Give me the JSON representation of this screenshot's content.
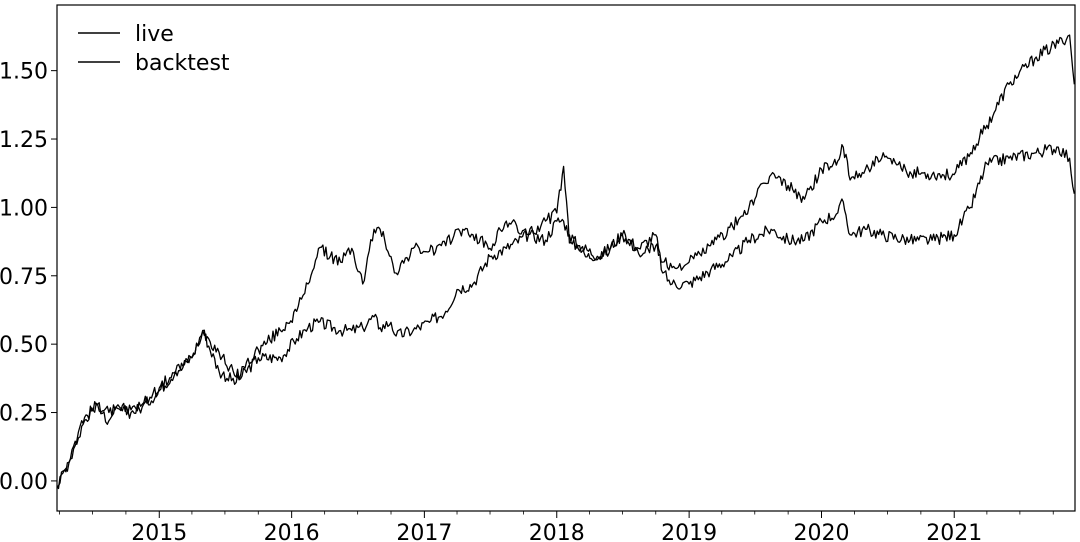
{
  "chart_data": {
    "type": "line",
    "title": "",
    "xlabel": "",
    "ylabel": "",
    "x_axis": "date",
    "xlim": [
      "2014-03-25",
      "2021-11-30"
    ],
    "ylim": [
      -0.11,
      1.74
    ],
    "grid": false,
    "legend": {
      "placement": "top-left",
      "entries": [
        "live",
        "backtest"
      ]
    },
    "x_ticks": [
      "2015",
      "2016",
      "2017",
      "2018",
      "2019",
      "2020",
      "2021"
    ],
    "y_ticks": [
      "0.00",
      "0.25",
      "0.50",
      "0.75",
      "1.00",
      "1.25",
      "1.50"
    ],
    "series": [
      {
        "name": "live",
        "color": "#000000",
        "x": [
          "2014-03-25",
          "2014-05-01",
          "2014-06-01",
          "2014-07-15",
          "2014-08-15",
          "2014-09-01",
          "2014-10-15",
          "2014-11-15",
          "2015-01-01",
          "2015-02-15",
          "2015-04-01",
          "2015-05-01",
          "2015-06-15",
          "2015-08-01",
          "2015-10-01",
          "2015-12-01",
          "2016-01-15",
          "2016-02-15",
          "2016-03-15",
          "2016-05-15",
          "2016-06-15",
          "2016-07-15",
          "2016-08-15",
          "2016-09-01",
          "2016-10-01",
          "2016-10-15",
          "2016-12-01",
          "2017-01-15",
          "2017-03-01",
          "2017-04-01",
          "2017-05-15",
          "2017-07-01",
          "2017-08-15",
          "2017-10-15",
          "2017-12-01",
          "2018-01-01",
          "2018-01-20",
          "2018-02-05",
          "2018-03-01",
          "2018-05-01",
          "2018-07-01",
          "2018-08-15",
          "2018-10-01",
          "2018-10-20",
          "2018-11-15",
          "2019-01-01",
          "2019-03-01",
          "2019-05-01",
          "2019-06-15",
          "2019-08-15",
          "2019-10-01",
          "2019-11-15",
          "2020-01-01",
          "2020-02-15",
          "2020-03-01",
          "2020-03-20",
          "2020-05-01",
          "2020-06-15",
          "2020-09-01",
          "2020-11-01",
          "2021-01-01",
          "2021-02-15",
          "2021-04-01",
          "2021-06-01",
          "2021-08-15",
          "2021-10-15",
          "2021-11-15",
          "2021-11-28"
        ],
        "y": [
          -0.02,
          0.08,
          0.2,
          0.28,
          0.22,
          0.27,
          0.26,
          0.28,
          0.34,
          0.4,
          0.45,
          0.55,
          0.47,
          0.38,
          0.48,
          0.55,
          0.62,
          0.72,
          0.85,
          0.8,
          0.85,
          0.72,
          0.92,
          0.92,
          0.82,
          0.76,
          0.85,
          0.84,
          0.86,
          0.92,
          0.9,
          0.85,
          0.95,
          0.9,
          0.95,
          0.98,
          1.15,
          0.87,
          0.85,
          0.81,
          0.9,
          0.83,
          0.86,
          0.8,
          0.78,
          0.8,
          0.86,
          0.93,
          1.0,
          1.12,
          1.08,
          1.03,
          1.14,
          1.17,
          1.22,
          1.1,
          1.14,
          1.18,
          1.13,
          1.12,
          1.12,
          1.2,
          1.3,
          1.45,
          1.55,
          1.6,
          1.63,
          1.45
        ]
      },
      {
        "name": "backtest",
        "color": "#000000",
        "x": [
          "2014-03-25",
          "2014-05-01",
          "2014-06-01",
          "2014-07-15",
          "2014-08-15",
          "2014-09-01",
          "2014-10-15",
          "2014-11-15",
          "2015-01-01",
          "2015-02-15",
          "2015-04-01",
          "2015-05-01",
          "2015-06-15",
          "2015-08-01",
          "2015-10-01",
          "2015-12-01",
          "2016-01-15",
          "2016-02-15",
          "2016-03-15",
          "2016-05-15",
          "2016-06-15",
          "2016-07-15",
          "2016-08-15",
          "2016-09-01",
          "2016-10-01",
          "2016-10-15",
          "2016-12-01",
          "2017-01-15",
          "2017-03-01",
          "2017-04-01",
          "2017-05-15",
          "2017-07-01",
          "2017-08-15",
          "2017-10-15",
          "2017-12-01",
          "2018-01-01",
          "2018-01-20",
          "2018-02-05",
          "2018-03-01",
          "2018-05-01",
          "2018-07-01",
          "2018-08-15",
          "2018-10-01",
          "2018-10-20",
          "2018-11-15",
          "2019-01-01",
          "2019-03-01",
          "2019-05-01",
          "2019-06-15",
          "2019-08-15",
          "2019-10-01",
          "2019-11-15",
          "2020-01-01",
          "2020-02-15",
          "2020-03-01",
          "2020-03-20",
          "2020-05-01",
          "2020-06-15",
          "2020-09-01",
          "2020-11-01",
          "2021-01-01",
          "2021-02-15",
          "2021-04-01",
          "2021-06-01",
          "2021-08-15",
          "2021-10-15",
          "2021-11-15",
          "2021-11-28"
        ],
        "y": [
          -0.02,
          0.08,
          0.22,
          0.28,
          0.25,
          0.26,
          0.25,
          0.27,
          0.33,
          0.4,
          0.45,
          0.55,
          0.4,
          0.36,
          0.45,
          0.45,
          0.52,
          0.56,
          0.58,
          0.55,
          0.55,
          0.56,
          0.6,
          0.56,
          0.58,
          0.53,
          0.55,
          0.58,
          0.62,
          0.7,
          0.72,
          0.82,
          0.85,
          0.9,
          0.88,
          0.95,
          0.95,
          0.9,
          0.86,
          0.82,
          0.9,
          0.85,
          0.9,
          0.76,
          0.72,
          0.72,
          0.77,
          0.82,
          0.88,
          0.92,
          0.88,
          0.88,
          0.95,
          0.98,
          1.02,
          0.9,
          0.92,
          0.9,
          0.88,
          0.88,
          0.9,
          1.0,
          1.16,
          1.18,
          1.2,
          1.22,
          1.18,
          1.05
        ]
      }
    ]
  }
}
